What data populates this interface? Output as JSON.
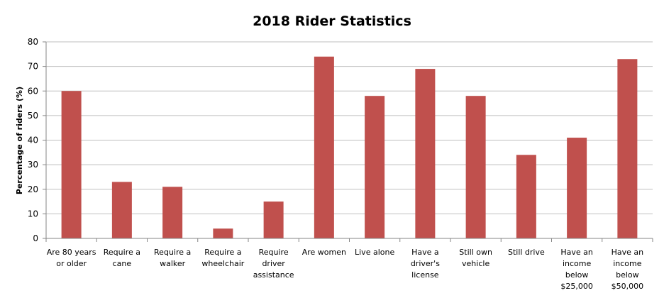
{
  "chart_data": {
    "type": "bar",
    "title": "2018 Rider Statistics",
    "xlabel": "",
    "ylabel": "Percentage of riders (%)",
    "ylim": [
      0,
      80
    ],
    "yticks": [
      "0",
      "10",
      "20",
      "30",
      "40",
      "50",
      "60",
      "70",
      "80"
    ],
    "grid": true,
    "legend": "none",
    "bar_color": "#c0504d",
    "categories": [
      [
        "Are 80 years",
        "or older"
      ],
      [
        "Require a",
        "cane"
      ],
      [
        "Require a",
        "walker"
      ],
      [
        "Require a",
        "wheelchair"
      ],
      [
        "Require",
        "driver",
        "assistance"
      ],
      [
        "Are women"
      ],
      [
        "Live alone"
      ],
      [
        "Have a",
        "driver's",
        "license"
      ],
      [
        "Still own",
        "vehicle"
      ],
      [
        "Still drive"
      ],
      [
        "Have an",
        "income",
        "below",
        "$25,000"
      ],
      [
        "Have an",
        "income",
        "below",
        "$50,000"
      ]
    ],
    "values": [
      60,
      23,
      21,
      4,
      15,
      74,
      58,
      69,
      58,
      34,
      41,
      73
    ]
  }
}
